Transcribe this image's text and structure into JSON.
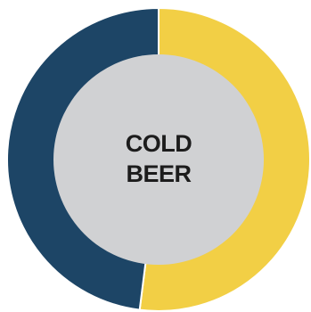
{
  "chart_data": {
    "type": "donut",
    "categories": [
      null,
      null
    ],
    "values": [
      52,
      48
    ],
    "colors": [
      "#f2cf45",
      "#1d4566"
    ],
    "center_label": [
      "COLD",
      "BEER"
    ]
  }
}
